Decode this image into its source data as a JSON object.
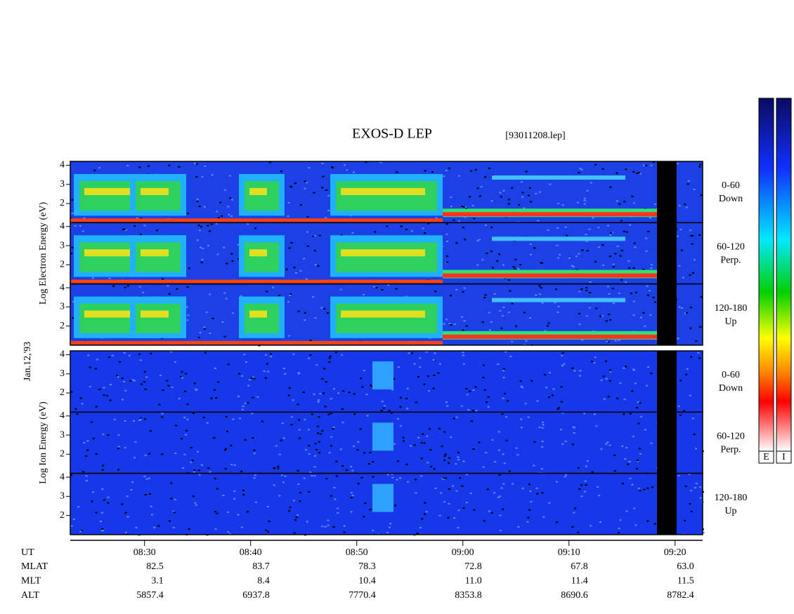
{
  "title": "EXOS-D LEP",
  "file": "[93011208.lep]",
  "date": "Jan.12,'93",
  "energy_ylim": [
    1,
    4.2
  ],
  "yticks": [
    2,
    3,
    4
  ],
  "blocks": [
    {
      "axis_label": "Log Electron Energy (eV)",
      "panels": [
        {
          "label": "0-60",
          "direction": "Down"
        },
        {
          "label": "60-120",
          "direction": "Perp."
        },
        {
          "label": "120-180",
          "direction": "Up"
        }
      ]
    },
    {
      "axis_label": "Log Ion Energy (eV)",
      "panels": [
        {
          "label": "0-60",
          "direction": "Down"
        },
        {
          "label": "60-120",
          "direction": "Perp."
        },
        {
          "label": "120-180",
          "direction": "Up"
        }
      ]
    }
  ],
  "time_axis": {
    "label": "UT",
    "xlim": [
      503,
      562.6
    ],
    "xticks": [
      {
        "value": 510,
        "label": "08:30"
      },
      {
        "value": 520,
        "label": "08:40"
      },
      {
        "value": 530,
        "label": "08:50"
      },
      {
        "value": 540,
        "label": "09:00"
      },
      {
        "value": 550,
        "label": "09:10"
      },
      {
        "value": 560,
        "label": "09:20"
      }
    ]
  },
  "ephemeris": [
    {
      "name": "MLAT",
      "values": [
        "82.5",
        "83.7",
        "78.3",
        "72.8",
        "67.8",
        "63.0"
      ]
    },
    {
      "name": "MLT",
      "values": [
        "3.1",
        "8.4",
        "10.4",
        "11.0",
        "11.4",
        "11.5"
      ]
    },
    {
      "name": "ALT",
      "values": [
        "5857.4",
        "6937.8",
        "7770.4",
        "8353.8",
        "8690.6",
        "8782.4"
      ]
    }
  ],
  "colorbars": [
    "E",
    "I"
  ]
}
